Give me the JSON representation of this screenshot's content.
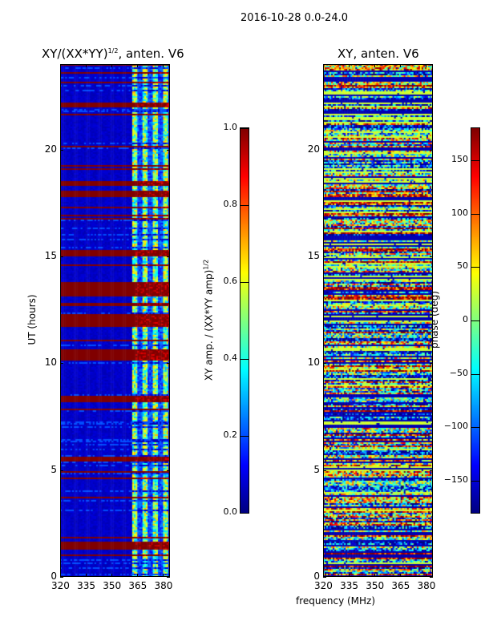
{
  "suptitle": "2016-10-28 0.0-24.0",
  "chart_data": [
    {
      "type": "heatmap",
      "title": "XY/(XX*YY)^1/2, anten. V6",
      "title_main": "XY/(XX*YY)",
      "title_sup": "1/2",
      "title_rest": ", anten. V6",
      "xlabel": "frequency (MHz)",
      "ylabel": "UT (hours)",
      "xlim": [
        320,
        384
      ],
      "ylim": [
        0,
        24
      ],
      "xticks": [
        "320",
        "335",
        "350",
        "365",
        "380"
      ],
      "xtick_values": [
        320,
        335,
        350,
        365,
        380
      ],
      "yticks": [
        "0",
        "5",
        "10",
        "15",
        "20"
      ],
      "ytick_values": [
        0,
        5,
        10,
        15,
        20
      ],
      "colorbar": {
        "label_main": "XY amp. / (XX*YY amp)",
        "label_sup": "1/2",
        "range": [
          0.0,
          1.0
        ],
        "ticks": [
          "0.0",
          "0.2",
          "0.4",
          "0.6",
          "0.8",
          "1.0"
        ],
        "tick_values": [
          0,
          0.2,
          0.4,
          0.6,
          0.8,
          1.0
        ],
        "colormap": "jet"
      },
      "red_row_ranges_ut": [
        [
          13.1,
          13.8
        ],
        [
          11.7,
          12.3
        ],
        [
          10.1,
          10.6
        ],
        [
          15.0,
          15.3
        ],
        [
          17.8,
          18.1
        ],
        [
          22.0,
          22.2
        ],
        [
          8.2,
          8.5
        ],
        [
          12.7,
          12.85
        ],
        [
          5.4,
          5.6
        ],
        [
          1.3,
          1.5
        ]
      ]
    },
    {
      "type": "heatmap",
      "title": "XY, anten. V6",
      "xlabel": "frequency (MHz)",
      "xlim": [
        320,
        384
      ],
      "ylim": [
        0,
        24
      ],
      "xticks": [
        "320",
        "335",
        "350",
        "365",
        "380"
      ],
      "xtick_values": [
        320,
        335,
        350,
        365,
        380
      ],
      "yticks": [
        "0",
        "5",
        "10",
        "15",
        "20"
      ],
      "ytick_values": [
        0,
        5,
        10,
        15,
        20
      ],
      "colorbar": {
        "label": "phase (deg)",
        "range": [
          -180,
          180
        ],
        "ticks": [
          "−150",
          "−100",
          "−50",
          "0",
          "50",
          "100",
          "150"
        ],
        "tick_values": [
          -150,
          -100,
          -50,
          0,
          50,
          100,
          150
        ],
        "colormap": "jet"
      }
    }
  ]
}
